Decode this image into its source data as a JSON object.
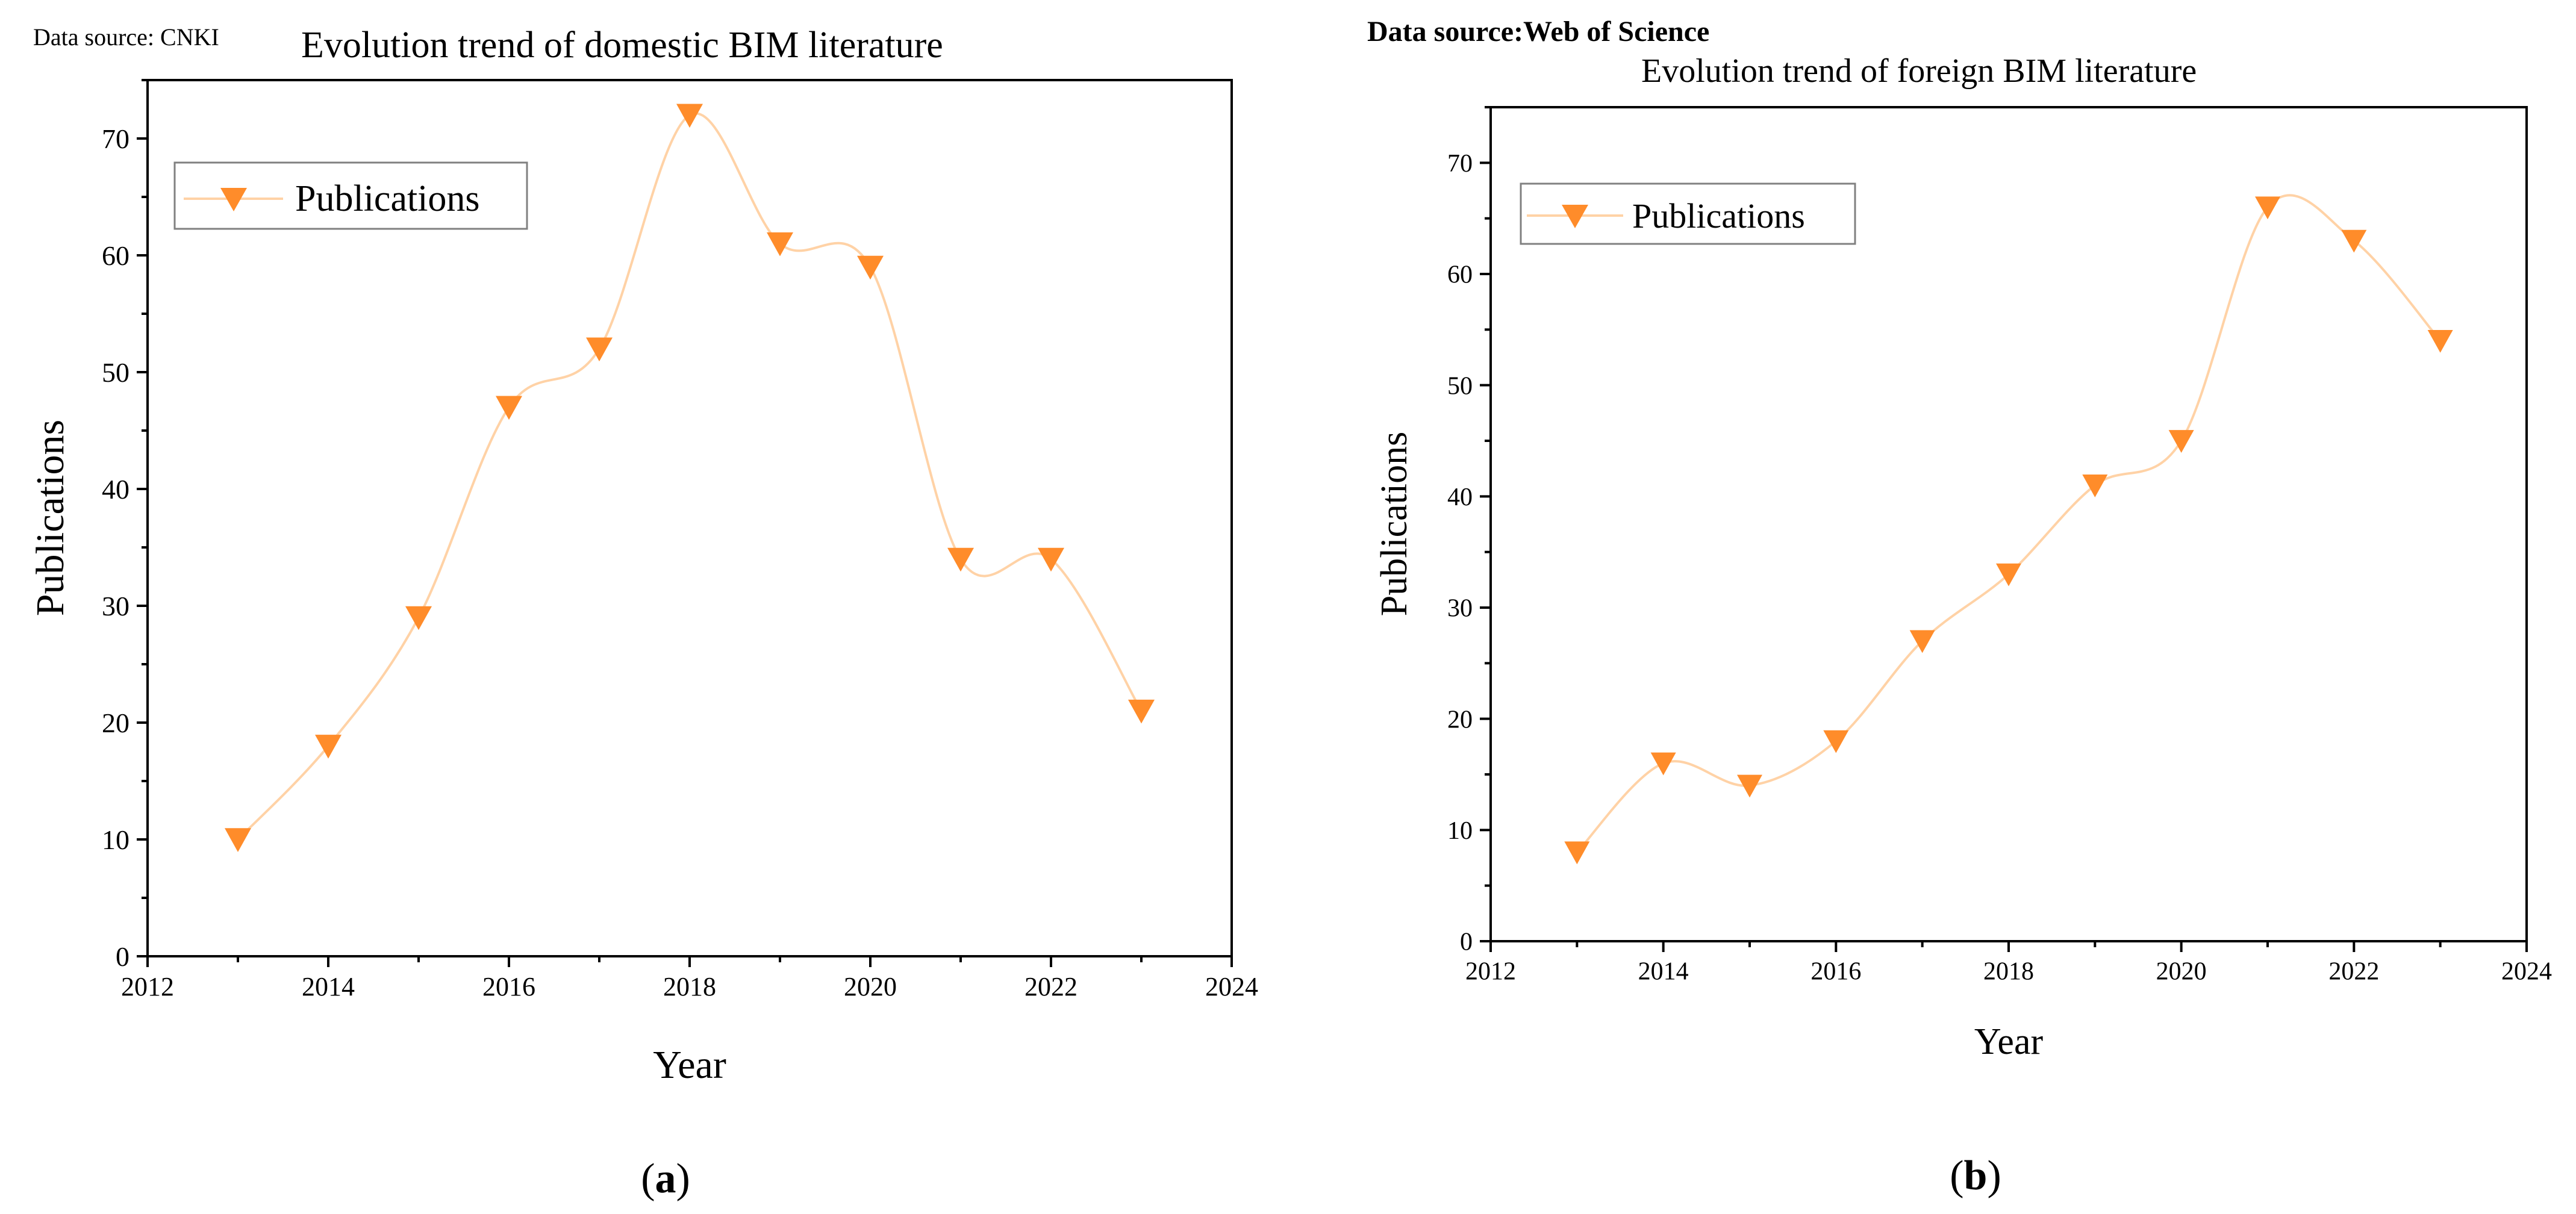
{
  "panels": [
    {
      "source": "Data source: CNKI",
      "caption_prefix": "(",
      "caption_letter": "a",
      "caption_suffix": ")"
    },
    {
      "source": "Data source:Web of Science",
      "caption_prefix": "(",
      "caption_letter": "b",
      "caption_suffix": ")"
    }
  ],
  "chart_data": [
    {
      "type": "line",
      "title": "Evolution trend of domestic BIM literature",
      "xlabel": "Year",
      "ylabel": "Publications",
      "xlim": [
        2012,
        2024
      ],
      "ylim": [
        0,
        75
      ],
      "x_ticks": [
        "2012",
        "2014",
        "2016",
        "2018",
        "2020",
        "2022",
        "2024"
      ],
      "y_ticks": [
        "0",
        "10",
        "20",
        "30",
        "40",
        "50",
        "60",
        "70"
      ],
      "grid": false,
      "legend_position": "top-left",
      "marker": "down-triangle",
      "line_style": "smooth",
      "colors": {
        "marker": "#FF8C2A",
        "line": "#FFD2A6"
      },
      "x": [
        2013,
        2014,
        2015,
        2016,
        2017,
        2018,
        2019,
        2020,
        2021,
        2022,
        2023
      ],
      "series": [
        {
          "name": "Publications",
          "values": [
            10,
            18,
            29,
            47,
            52,
            72,
            61,
            59,
            34,
            34,
            21
          ]
        }
      ]
    },
    {
      "type": "line",
      "title": "Evolution trend of foreign BIM literature",
      "xlabel": "Year",
      "ylabel": "Publications",
      "xlim": [
        2012,
        2024
      ],
      "ylim": [
        0,
        75
      ],
      "x_ticks": [
        "2012",
        "2014",
        "2016",
        "2018",
        "2020",
        "2022",
        "2024"
      ],
      "y_ticks": [
        "0",
        "10",
        "20",
        "30",
        "40",
        "50",
        "60",
        "70"
      ],
      "grid": false,
      "legend_position": "top-left",
      "marker": "down-triangle",
      "line_style": "smooth",
      "colors": {
        "marker": "#FF8C2A",
        "line": "#FFD2A6"
      },
      "x": [
        2013,
        2014,
        2015,
        2016,
        2017,
        2018,
        2019,
        2020,
        2021,
        2022,
        2023
      ],
      "series": [
        {
          "name": "Publications",
          "values": [
            8,
            16,
            14,
            18,
            27,
            33,
            41,
            45,
            66,
            63,
            54
          ]
        }
      ]
    }
  ]
}
